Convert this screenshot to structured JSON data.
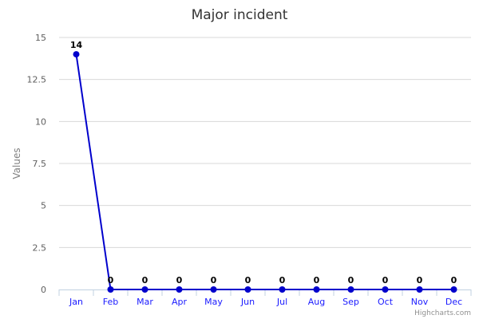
{
  "chart_data": {
    "type": "line",
    "title": "Major incident",
    "xlabel": "",
    "ylabel": "Values",
    "categories": [
      "Jan",
      "Feb",
      "Mar",
      "Apr",
      "May",
      "Jun",
      "Jul",
      "Aug",
      "Sep",
      "Oct",
      "Nov",
      "Dec"
    ],
    "series": [
      {
        "values": [
          14,
          0,
          0,
          0,
          0,
          0,
          0,
          0,
          0,
          0,
          0,
          0
        ],
        "color": "#0000cc"
      }
    ],
    "ylim": [
      0,
      15
    ],
    "yticks": [
      "0",
      "2.5",
      "5",
      "7.5",
      "10",
      "12.5",
      "15"
    ],
    "grid": true,
    "legend": "none",
    "data_labels": true
  },
  "credit": "Highcharts.com"
}
